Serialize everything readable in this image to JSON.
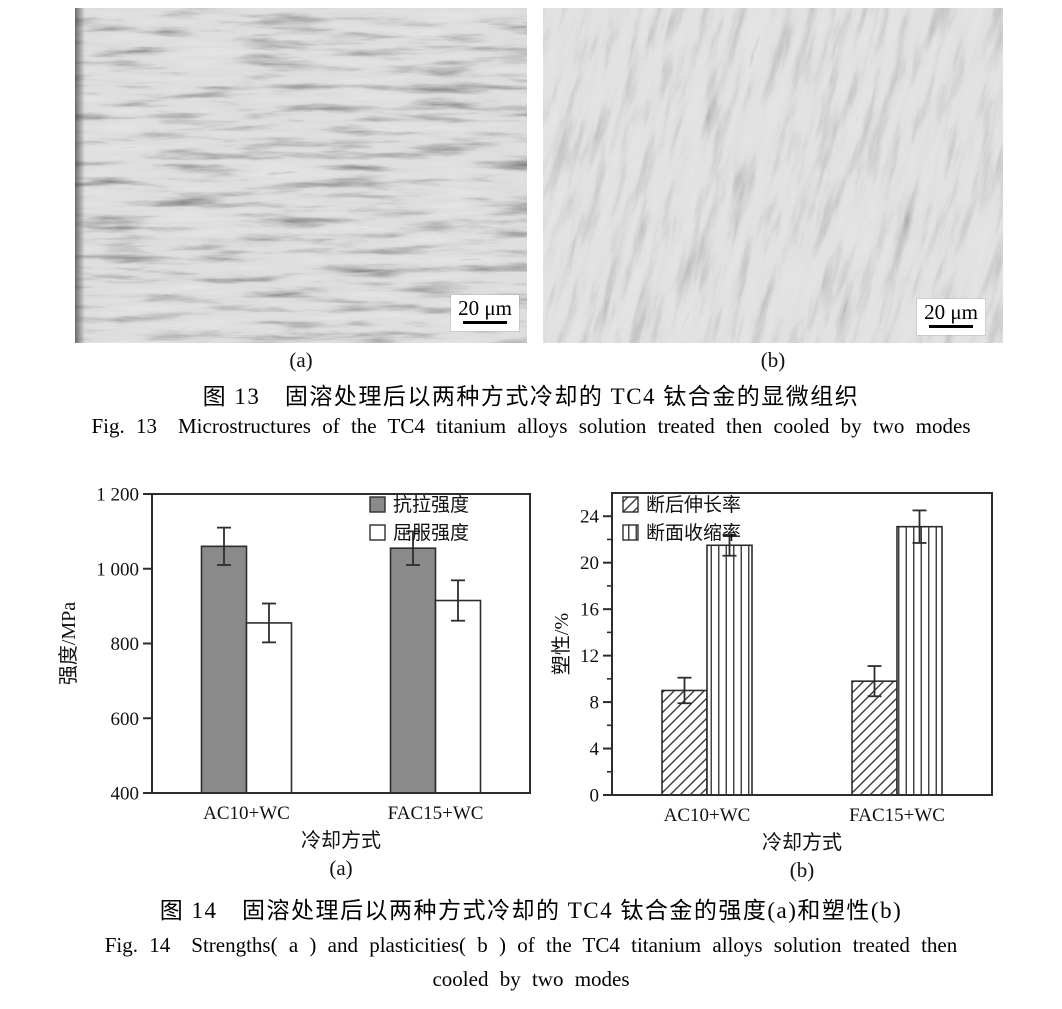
{
  "figure13": {
    "panel_a_label": "(a)",
    "panel_b_label": "(b)",
    "scale_bar": "20 μm",
    "caption_zh": "图 13　固溶处理后以两种方式冷却的 TC4 钛合金的显微组织",
    "caption_en": "Fig. 13　Microstructures of the TC4 titanium alloys solution treated then cooled by two modes"
  },
  "figure14": {
    "caption_zh": "图 14　固溶处理后以两种方式冷却的 TC4 钛合金的强度(a)和塑性(b)",
    "caption_en_line1": "Fig. 14　Strengths( a )  and plasticities( b )  of the TC4 titanium alloys solution treated then",
    "caption_en_line2": "cooled by two modes"
  },
  "chart_data": [
    {
      "type": "bar",
      "panel": "(a)",
      "ylabel": "强度/MPa",
      "xlabel": "冷却方式",
      "ylim": [
        400,
        1200
      ],
      "yticks": [
        400,
        600,
        800,
        1000,
        1200
      ],
      "ytick_labels": [
        "400",
        "600",
        "800",
        "1 000",
        "1 200"
      ],
      "minor_yticks": [],
      "categories": [
        "AC10+WC",
        "FAC15+WC"
      ],
      "series": [
        {
          "name": "抗拉强度",
          "style": "gray",
          "values": [
            1060,
            1055
          ],
          "errors": [
            50,
            45
          ]
        },
        {
          "name": "屈服强度",
          "style": "white",
          "values": [
            855,
            915
          ],
          "errors": [
            52,
            54
          ]
        }
      ],
      "legend_position": "top-right",
      "grid": false
    },
    {
      "type": "bar",
      "panel": "(b)",
      "ylabel": "塑性/%",
      "xlabel": "冷却方式",
      "ylim": [
        0,
        26
      ],
      "yticks": [
        0,
        4,
        8,
        12,
        16,
        20,
        24
      ],
      "ytick_labels": [
        "0",
        "4",
        "8",
        "12",
        "16",
        "20",
        "24"
      ],
      "minor_yticks": [
        2,
        6,
        10,
        14,
        18,
        22
      ],
      "categories": [
        "AC10+WC",
        "FAC15+WC"
      ],
      "series": [
        {
          "name": "断后伸长率",
          "style": "diagonal-hatch",
          "values": [
            9.0,
            9.8
          ],
          "errors": [
            1.1,
            1.3
          ]
        },
        {
          "name": "断面收缩率",
          "style": "vertical-hatch",
          "values": [
            21.5,
            23.1
          ],
          "errors": [
            0.9,
            1.4
          ]
        }
      ],
      "legend_position": "top-left",
      "grid": false
    }
  ],
  "colors": {
    "bar_gray": "#8a8a8a",
    "hatch": "#3a3a3a",
    "axis": "#2d2d2d",
    "text": "#111111",
    "background": "#ffffff"
  }
}
